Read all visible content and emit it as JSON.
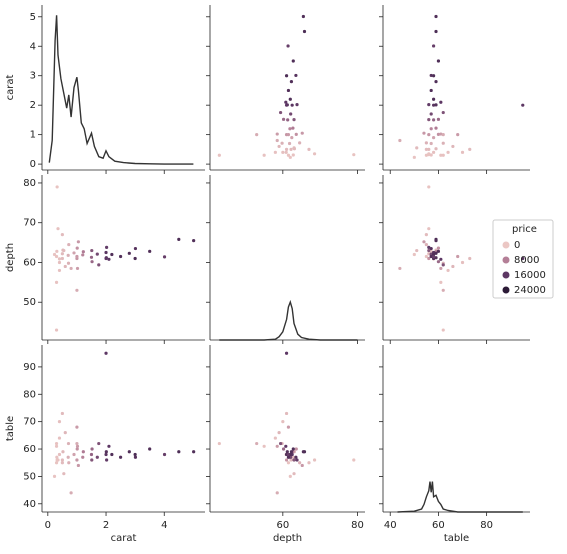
{
  "chart_data": {
    "type": "pairplot",
    "variables": [
      {
        "name": "carat",
        "lim": [
          -0.2,
          5.4
        ],
        "xticks": [
          0,
          2,
          4
        ],
        "yticks": [
          0,
          1,
          2,
          3,
          4,
          5
        ]
      },
      {
        "name": "depth",
        "lim": [
          40.5,
          82
        ],
        "xticks": [
          60,
          80
        ],
        "yticks": [
          50,
          60,
          70,
          80
        ]
      },
      {
        "name": "table",
        "lim": [
          37,
          98
        ],
        "xticks": [
          40,
          60,
          80
        ],
        "yticks": [
          40,
          50,
          60,
          70,
          80,
          90
        ]
      }
    ],
    "points": {
      "carat": [
        0.3,
        0.31,
        0.4,
        0.5,
        0.52,
        0.7,
        0.71,
        0.72,
        0.9,
        1.0,
        1.01,
        1.02,
        1.05,
        1.2,
        1.22,
        1.5,
        1.51,
        1.52,
        1.7,
        1.75,
        2.0,
        2.01,
        2.02,
        2.1,
        2.2,
        2.5,
        2.8,
        3.0,
        3.01,
        3.5,
        4.01,
        4.5,
        5.01,
        0.3,
        0.35,
        0.4,
        0.5,
        0.32,
        0.3,
        0.4,
        0.5,
        0.55,
        0.6,
        0.8,
        1.0,
        2.0,
        1.0,
        0.23
      ],
      "depth": [
        61.5,
        62.8,
        60.9,
        62.2,
        63.1,
        61.8,
        59.8,
        64.5,
        62.4,
        61.0,
        63.6,
        58.5,
        65.2,
        61.9,
        62.7,
        61.3,
        63.0,
        60.2,
        62.1,
        59.4,
        62.5,
        61.2,
        63.8,
        60.8,
        62.0,
        61.5,
        62.3,
        61.0,
        63.5,
        62.8,
        61.4,
        65.8,
        65.5,
        55.0,
        68.5,
        58.0,
        67.0,
        79.0,
        43.0,
        60.0,
        61.0,
        63.0,
        59.0,
        58.5,
        61.5,
        61.0,
        53.0,
        62.0
      ],
      "table": [
        55,
        57,
        58,
        56,
        59,
        57,
        62,
        55,
        58,
        56,
        60,
        61,
        54,
        57,
        59,
        58,
        56,
        60,
        57,
        62,
        58,
        59,
        56,
        61,
        58,
        57,
        59,
        58,
        57,
        60,
        58,
        59,
        59,
        61,
        56,
        64,
        55,
        56,
        62,
        70,
        73,
        51,
        66,
        44,
        68,
        95,
        62,
        50
      ],
      "price": [
        500,
        600,
        900,
        1400,
        1700,
        2700,
        2500,
        2400,
        4000,
        5500,
        6000,
        4800,
        5200,
        7500,
        8500,
        11000,
        12500,
        10500,
        14000,
        13000,
        16500,
        17500,
        15500,
        16000,
        18000,
        17800,
        18000,
        18500,
        17000,
        18100,
        15200,
        18500,
        18000,
        600,
        700,
        800,
        1300,
        500,
        650,
        900,
        1400,
        1500,
        1900,
        3000,
        5000,
        16000,
        3000,
        400
      ]
    },
    "kde": [
      {
        "x": [
          0.05,
          0.15,
          0.25,
          0.3,
          0.35,
          0.45,
          0.55,
          0.65,
          0.72,
          0.8,
          0.9,
          1.0,
          1.05,
          1.15,
          1.25,
          1.35,
          1.5,
          1.6,
          1.75,
          1.9,
          2.0,
          2.1,
          2.3,
          2.6,
          3.0,
          3.5,
          4,
          5
        ],
        "values": [
          0.05,
          0.8,
          4.2,
          5.05,
          3.7,
          2.9,
          2.4,
          1.9,
          2.35,
          1.6,
          2.6,
          2.95,
          2.5,
          1.4,
          1.2,
          0.7,
          1.05,
          0.6,
          0.25,
          0.2,
          0.45,
          0.25,
          0.1,
          0.05,
          0.02,
          0.01,
          0,
          0
        ],
        "ylim": [
          -0.2,
          5.4
        ]
      },
      {
        "x": [
          43,
          55,
          58,
          59,
          60,
          61,
          61.5,
          62,
          62.5,
          63,
          64,
          65,
          67,
          70,
          80
        ],
        "values": [
          0,
          0,
          0.01,
          0.04,
          0.1,
          0.25,
          0.4,
          0.46,
          0.38,
          0.2,
          0.07,
          0.03,
          0.01,
          0,
          0
        ],
        "ylim": [
          0,
          2.0
        ]
      },
      {
        "x": [
          43,
          50,
          53,
          54,
          55,
          56,
          56.5,
          57,
          57.5,
          58,
          59,
          60,
          61,
          62,
          64,
          68,
          80,
          95
        ],
        "values": [
          0,
          0.005,
          0.02,
          0.05,
          0.1,
          0.14,
          0.2,
          0.13,
          0.2,
          0.1,
          0.11,
          0.07,
          0.05,
          0.02,
          0.01,
          0,
          0,
          0
        ],
        "ylim": [
          0,
          1.1
        ]
      }
    ],
    "kde_color": "#333333",
    "hue": {
      "name": "price",
      "levels": [
        0,
        8000,
        16000,
        24000
      ],
      "colors": [
        "#ebc7c4",
        "#b47f97",
        "#5d3764",
        "#2b1a36"
      ]
    }
  }
}
